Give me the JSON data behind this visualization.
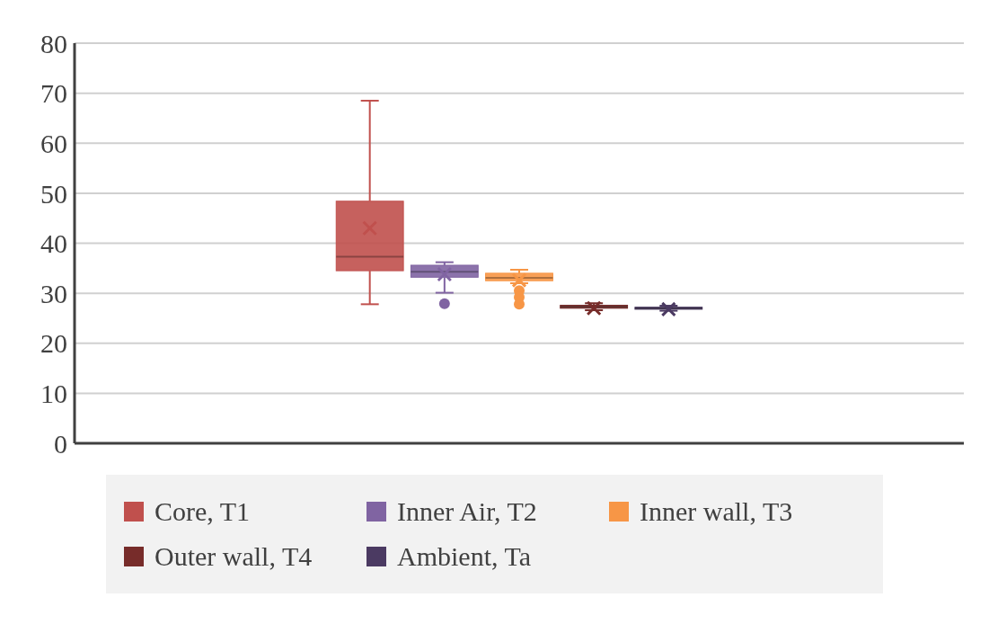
{
  "chart_data": {
    "type": "box",
    "categories": [
      null
    ],
    "ylim": [
      0,
      80
    ],
    "yticks": [
      0,
      10,
      20,
      30,
      40,
      50,
      60,
      70,
      80
    ],
    "grid": "y",
    "legend": "bottom",
    "series": [
      {
        "name": "Core, T1",
        "color": "#c0504d",
        "boxes": [
          {
            "low": 27.8,
            "q1": 34.5,
            "median": 37.3,
            "q3": 48.4,
            "high": 68.5,
            "mean": 43
          }
        ]
      },
      {
        "name": "Inner Air, T2",
        "color": "#8064a2",
        "boxes": [
          {
            "low": 30.1,
            "q1": 33.2,
            "median": 34.3,
            "q3": 35.6,
            "high": 36.2,
            "mean": 33.8,
            "outliers": [
              27.9
            ]
          }
        ]
      },
      {
        "name": "Inner wall, T3",
        "color": "#f79646",
        "boxes": [
          {
            "low": 32,
            "q1": 32.5,
            "median": 33.1,
            "q3": 34,
            "high": 34.7,
            "mean": 32.6,
            "outliers": [
              30.5,
              29.2,
              27.8
            ]
          }
        ]
      },
      {
        "name": "Outer wall, T4",
        "color": "#772c2a",
        "boxes": [
          {
            "low": 26.6,
            "q1": 27,
            "median": 27.3,
            "q3": 27.6,
            "high": 28,
            "mean": 27
          }
        ]
      },
      {
        "name": "Ambient, Ta",
        "color": "#4b3a62",
        "boxes": [
          {
            "low": 26.5,
            "q1": 26.8,
            "median": 27,
            "q3": 27.2,
            "high": 27.5,
            "mean": 26.8
          }
        ]
      }
    ]
  }
}
